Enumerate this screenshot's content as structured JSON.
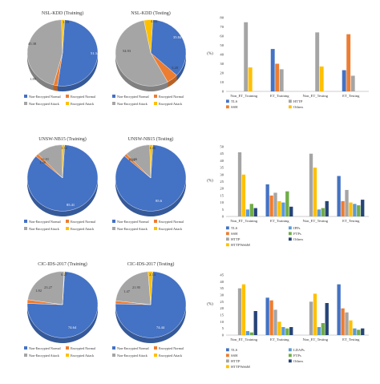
{
  "colors": {
    "non_encrypted_normal": "#4472c4",
    "encrypted_normal": "#ed7d31",
    "non_encrypted_attack": "#a5a5a5",
    "encrypted_attack": "#ffc000",
    "tls": "#4472c4",
    "ssh": "#ed7d31",
    "http": "#a5a5a5",
    "others_yellow": "#ffc000",
    "ipps": "#5b9bd5",
    "ftps": "#70ad47",
    "httpwebm": "#ffc000",
    "others_navy": "#264478",
    "ldaps": "#5b9bd5"
  },
  "pie_legend_labels": [
    "Non-Encrypted Normal",
    "Encrypted Normal",
    "Non-Encrypted Attack",
    "Encrypted Attack"
  ],
  "chart_data": [
    {
      "type": "pie",
      "title": "NSL-KDD (Training)",
      "slices": [
        {
          "label": "Non-Encrypted Normal",
          "value": 51.34
        },
        {
          "label": "Encrypted Normal",
          "value": 1.89
        },
        {
          "label": "Non-Encrypted Attack",
          "value": 45.38
        },
        {
          "label": "Encrypted Attack",
          "value": 1.39
        }
      ],
      "data_labels": [
        "51.34",
        "1.89",
        "45.38",
        "1.39"
      ]
    },
    {
      "type": "pie",
      "title": "NSL-KDD (Testing)",
      "slices": [
        {
          "label": "Non-Encrypted Normal",
          "value": 35.84
        },
        {
          "label": "Encrypted Normal",
          "value": 5.2
        },
        {
          "label": "Non-Encrypted Attack",
          "value": 54.93
        },
        {
          "label": "Encrypted Attack",
          "value": 4.03
        }
      ],
      "data_labels": [
        "35.84",
        "5.20",
        "54.93",
        "4.03"
      ]
    },
    {
      "type": "bar",
      "ylabel": "(%)",
      "ylim": [
        0,
        80
      ],
      "yticks": [
        0,
        10,
        20,
        30,
        40,
        50,
        60,
        70,
        80
      ],
      "categories": [
        "Non_ET_Training",
        "ET_Training",
        "Non_ET_Testing",
        "ET_Testing"
      ],
      "series": [
        {
          "name": "TLS",
          "values": [
            0,
            46,
            0,
            23
          ]
        },
        {
          "name": "SSH",
          "values": [
            0,
            30,
            0,
            62
          ]
        },
        {
          "name": "HTTP",
          "values": [
            75,
            24,
            64,
            17
          ]
        },
        {
          "name": "Others",
          "values": [
            26,
            0,
            27,
            0
          ]
        }
      ]
    },
    {
      "type": "pie",
      "title": "UNSW-NB15 (Training)",
      "slices": [
        {
          "label": "Non-Encrypted Normal",
          "value": 85.41
        },
        {
          "label": "Encrypted Normal",
          "value": 1.46
        },
        {
          "label": "Non-Encrypted Attack",
          "value": 12.01
        },
        {
          "label": "Encrypted Attack",
          "value": 1.12
        }
      ],
      "data_labels": [
        "85.41",
        "1.46",
        "12.01",
        "1.12"
      ]
    },
    {
      "type": "pie",
      "title": "UNSW-NB15 (Testing)",
      "slices": [
        {
          "label": "Non-Encrypted Normal",
          "value": 85.6
        },
        {
          "label": "Encrypted Normal",
          "value": 1.34
        },
        {
          "label": "Non-Encrypted Attack",
          "value": 11.66
        },
        {
          "label": "Encrypted Attack",
          "value": 1.4
        }
      ],
      "data_labels": [
        "85.6",
        "1.34",
        "11.66",
        "1.40"
      ]
    },
    {
      "type": "bar",
      "ylabel": "(%)",
      "ylim": [
        0,
        50
      ],
      "yticks": [
        0,
        5,
        10,
        15,
        20,
        25,
        30,
        35,
        40,
        45,
        50
      ],
      "categories": [
        "Non_ET_Training",
        "ET_Training",
        "Non_ET_Testing",
        "ET_Testing"
      ],
      "series": [
        {
          "name": "TLS",
          "values": [
            0,
            23,
            0,
            29
          ]
        },
        {
          "name": "SSH",
          "values": [
            0,
            15,
            0,
            11
          ]
        },
        {
          "name": "HTTP",
          "values": [
            46,
            17,
            45,
            19
          ]
        },
        {
          "name": "HTTPWebM",
          "values": [
            30,
            11,
            35,
            10
          ]
        },
        {
          "name": "IPPs",
          "values": [
            5,
            10,
            5,
            9
          ]
        },
        {
          "name": "FTPs",
          "values": [
            9,
            18,
            6,
            8
          ]
        },
        {
          "name": "Others",
          "values": [
            6,
            7,
            11,
            12
          ]
        }
      ]
    },
    {
      "type": "pie",
      "title": "CIC-IDS-2017 (Training)",
      "slices": [
        {
          "label": "Non-Encrypted Normal",
          "value": 74.64
        },
        {
          "label": "Encrypted Normal",
          "value": 1.82
        },
        {
          "label": "Non-Encrypted Attack",
          "value": 23.27
        },
        {
          "label": "Encrypted Attack",
          "value": 0.27
        }
      ],
      "data_labels": [
        "74.64",
        "1.82",
        "23.27",
        "0.27"
      ]
    },
    {
      "type": "pie",
      "title": "CIC-IDS-2017 (Testing)",
      "slices": [
        {
          "label": "Non-Encrypted Normal",
          "value": 74.44
        },
        {
          "label": "Encrypted Normal",
          "value": 1.47
        },
        {
          "label": "Non-Encrypted Attack",
          "value": 21.95
        },
        {
          "label": "Encrypted Attack",
          "value": 2.14
        }
      ],
      "data_labels": [
        "74.44",
        "1.47",
        "21.95",
        "2.14"
      ]
    },
    {
      "type": "bar",
      "ylabel": "(%)",
      "ylim": [
        0,
        45
      ],
      "yticks": [
        0,
        5,
        10,
        15,
        20,
        25,
        30,
        35,
        40,
        45
      ],
      "categories": [
        "Non_ET_Training",
        "ET_Training",
        "Non_ET_Testing",
        "ET_Testing"
      ],
      "series": [
        {
          "name": "TLS",
          "values": [
            0,
            28,
            0,
            38
          ]
        },
        {
          "name": "SSH",
          "values": [
            0,
            26,
            0,
            20
          ]
        },
        {
          "name": "HTTP",
          "values": [
            35,
            19,
            25,
            17
          ]
        },
        {
          "name": "HTTPWebM",
          "values": [
            38,
            10,
            31,
            11
          ]
        },
        {
          "name": "LDAPs",
          "values": [
            3,
            6,
            6,
            5
          ]
        },
        {
          "name": "FTPs",
          "values": [
            2,
            5,
            9,
            4
          ]
        },
        {
          "name": "Others",
          "values": [
            18,
            6,
            24,
            5
          ]
        }
      ]
    }
  ],
  "bar_legends": [
    [
      {
        "name": "TLS",
        "color_key": "tls"
      },
      {
        "name": "HTTP",
        "color_key": "http"
      },
      {
        "name": "SSH",
        "color_key": "ssh"
      },
      {
        "name": "Others",
        "color_key": "others_yellow"
      }
    ],
    [
      {
        "name": "TLS",
        "color_key": "tls"
      },
      {
        "name": "IPPs",
        "color_key": "ipps"
      },
      {
        "name": "SSH",
        "color_key": "ssh"
      },
      {
        "name": "FTPs",
        "color_key": "ftps"
      },
      {
        "name": "HTTP",
        "color_key": "http"
      },
      {
        "name": "Others",
        "color_key": "others_navy"
      },
      {
        "name": "HTTPWebM",
        "color_key": "httpwebm"
      }
    ],
    [
      {
        "name": "TLS",
        "color_key": "tls"
      },
      {
        "name": "LDAPs",
        "color_key": "ldaps"
      },
      {
        "name": "SSH",
        "color_key": "ssh"
      },
      {
        "name": "FTPs",
        "color_key": "ftps"
      },
      {
        "name": "HTTP",
        "color_key": "http"
      },
      {
        "name": "Others",
        "color_key": "others_navy"
      },
      {
        "name": "HTTPWebM",
        "color_key": "httpwebm"
      }
    ]
  ]
}
